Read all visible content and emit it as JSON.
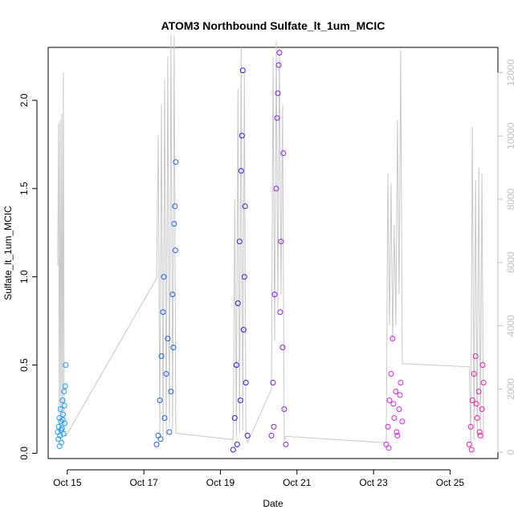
{
  "chart_data": {
    "type": "scatter",
    "title": "ATOM3 Northbound Sulfate_lt_1um_MCIC",
    "xlabel": "Date",
    "ylabel": "Sulfate_lt_1um_MCIC",
    "x_ticks": [
      "Oct 15",
      "Oct 17",
      "Oct 19",
      "Oct 21",
      "Oct 23",
      "Oct 25"
    ],
    "y_ticks": [
      "0.0",
      "0.5",
      "1.0",
      "1.5",
      "2.0"
    ],
    "y2_ticks": [
      "0",
      "2000",
      "4000",
      "6000",
      "8000",
      "10000",
      "12000"
    ],
    "xlim": [
      "2017-10-14 12:00",
      "2017-10-26 06:00"
    ],
    "ylim": [
      -0.03,
      2.3
    ],
    "y2lim": [
      -200,
      12800
    ],
    "axes_style": "open left, bottom and right axes with box frame",
    "grid": false,
    "legend": "none",
    "secondary_series": {
      "type": "line",
      "color": "#c8c8c8",
      "description_axis": "right",
      "points": [
        [
          "2017-10-14 18:00",
          5900
        ],
        [
          "2017-10-14 18:30",
          10400
        ],
        [
          "2017-10-14 19:00",
          300
        ],
        [
          "2017-10-14 19:30",
          10500
        ],
        [
          "2017-10-14 20:00",
          400
        ],
        [
          "2017-10-14 20:30",
          10700
        ],
        [
          "2017-10-14 21:00",
          300
        ],
        [
          "2017-10-14 21:30",
          12000
        ],
        [
          "2017-10-14 22:00",
          600
        ],
        [
          "2017-10-14 23:00",
          500
        ],
        [
          "2017-10-17 08:00",
          5500
        ],
        [
          "2017-10-17 09:00",
          10000
        ],
        [
          "2017-10-17 10:00",
          500
        ],
        [
          "2017-10-17 11:00",
          11000
        ],
        [
          "2017-10-17 12:00",
          400
        ],
        [
          "2017-10-17 13:00",
          11800
        ],
        [
          "2017-10-17 14:00",
          500
        ],
        [
          "2017-10-17 15:00",
          12500
        ],
        [
          "2017-10-17 16:00",
          800
        ],
        [
          "2017-10-17 17:00",
          13200
        ],
        [
          "2017-10-17 18:00",
          700
        ],
        [
          "2017-10-17 19:00",
          13200
        ],
        [
          "2017-10-17 20:00",
          600
        ],
        [
          "2017-10-19 08:00",
          400
        ],
        [
          "2017-10-19 09:00",
          8000
        ],
        [
          "2017-10-19 10:00",
          500
        ],
        [
          "2017-10-19 11:00",
          11500
        ],
        [
          "2017-10-19 12:00",
          600
        ],
        [
          "2017-10-19 13:00",
          12800
        ],
        [
          "2017-10-19 14:00",
          700
        ],
        [
          "2017-10-19 15:00",
          12000
        ],
        [
          "2017-10-19 16:00",
          500
        ],
        [
          "2017-10-19 17:00",
          300
        ],
        [
          "2017-10-20 08:00",
          2000
        ],
        [
          "2017-10-20 09:00",
          12500
        ],
        [
          "2017-10-20 10:00",
          3500
        ],
        [
          "2017-10-20 11:00",
          13000
        ],
        [
          "2017-10-20 12:00",
          4500
        ],
        [
          "2017-10-20 13:00",
          12800
        ],
        [
          "2017-10-20 14:00",
          5000
        ],
        [
          "2017-10-20 15:00",
          11000
        ],
        [
          "2017-10-20 16:00",
          400
        ],
        [
          "2017-10-20 17:00",
          500
        ],
        [
          "2017-10-23 08:00",
          300
        ],
        [
          "2017-10-23 09:00",
          8800
        ],
        [
          "2017-10-23 10:00",
          4000
        ],
        [
          "2017-10-23 11:00",
          8500
        ],
        [
          "2017-10-23 12:00",
          3500
        ],
        [
          "2017-10-23 13:00",
          7200
        ],
        [
          "2017-10-23 14:00",
          4000
        ],
        [
          "2017-10-23 15:00",
          10500
        ],
        [
          "2017-10-23 16:00",
          5000
        ],
        [
          "2017-10-23 17:00",
          12700
        ],
        [
          "2017-10-23 18:00",
          2800
        ],
        [
          "2017-10-25 12:00",
          2700
        ],
        [
          "2017-10-25 13:00",
          300
        ],
        [
          "2017-10-25 14:00",
          10300
        ],
        [
          "2017-10-25 15:00",
          400
        ],
        [
          "2017-10-25 16:00",
          8600
        ],
        [
          "2017-10-25 17:00",
          500
        ],
        [
          "2017-10-25 18:00",
          9000
        ],
        [
          "2017-10-25 19:00",
          600
        ],
        [
          "2017-10-25 20:00",
          8800
        ],
        [
          "2017-10-25 21:00",
          400
        ]
      ]
    },
    "series": [
      {
        "color": "#1aa3ff",
        "marker": "open circle",
        "x_range": [
          "2017-10-14 18:00",
          "2017-10-14 23:00"
        ],
        "typical_y_range": [
          0.04,
          0.38
        ],
        "points": [
          [
            "2017-10-14 18:00",
            0.12
          ],
          [
            "2017-10-14 18:20",
            0.08
          ],
          [
            "2017-10-14 18:40",
            0.15
          ],
          [
            "2017-10-14 19:00",
            0.2
          ],
          [
            "2017-10-14 19:20",
            0.1
          ],
          [
            "2017-10-14 19:40",
            0.25
          ],
          [
            "2017-10-14 20:00",
            0.18
          ],
          [
            "2017-10-14 20:20",
            0.06
          ],
          [
            "2017-10-14 20:40",
            0.14
          ],
          [
            "2017-10-14 21:00",
            0.3
          ],
          [
            "2017-10-14 21:20",
            0.22
          ],
          [
            "2017-10-14 21:40",
            0.11
          ],
          [
            "2017-10-14 22:00",
            0.35
          ],
          [
            "2017-10-14 22:20",
            0.17
          ],
          [
            "2017-10-14 22:40",
            0.38
          ],
          [
            "2017-10-14 23:00",
            0.5
          ],
          [
            "2017-10-14 19:10",
            0.04
          ],
          [
            "2017-10-14 20:10",
            0.13
          ],
          [
            "2017-10-14 21:10",
            0.19
          ],
          [
            "2017-10-14 22:10",
            0.27
          ]
        ]
      },
      {
        "color": "#1a5cff",
        "marker": "open circle",
        "x_range": [
          "2017-10-17 08:00",
          "2017-10-17 20:00"
        ],
        "typical_y_range": [
          0.02,
          0.9
        ],
        "points": [
          [
            "2017-10-17 08:00",
            0.05
          ],
          [
            "2017-10-17 09:00",
            0.1
          ],
          [
            "2017-10-17 10:00",
            0.3
          ],
          [
            "2017-10-17 11:00",
            0.55
          ],
          [
            "2017-10-17 12:00",
            0.8
          ],
          [
            "2017-10-17 12:30",
            1.0
          ],
          [
            "2017-10-17 13:00",
            0.2
          ],
          [
            "2017-10-17 14:00",
            0.45
          ],
          [
            "2017-10-17 15:00",
            0.65
          ],
          [
            "2017-10-17 16:00",
            0.12
          ],
          [
            "2017-10-17 17:00",
            0.35
          ],
          [
            "2017-10-17 18:00",
            0.9
          ],
          [
            "2017-10-17 19:00",
            1.3
          ],
          [
            "2017-10-17 19:30",
            1.4
          ],
          [
            "2017-10-17 20:00",
            1.65
          ],
          [
            "2017-10-17 19:45",
            1.15
          ],
          [
            "2017-10-17 18:30",
            0.6
          ],
          [
            "2017-10-17 10:30",
            0.08
          ]
        ]
      },
      {
        "color": "#2a1aff",
        "marker": "open circle",
        "x_range": [
          "2017-10-19 08:00",
          "2017-10-19 17:00"
        ],
        "typical_y_range": [
          0.0,
          1.8
        ],
        "points": [
          [
            "2017-10-19 08:00",
            0.02
          ],
          [
            "2017-10-19 09:00",
            0.2
          ],
          [
            "2017-10-19 10:00",
            0.5
          ],
          [
            "2017-10-19 11:00",
            0.85
          ],
          [
            "2017-10-19 12:00",
            1.2
          ],
          [
            "2017-10-19 13:00",
            1.6
          ],
          [
            "2017-10-19 13:30",
            1.8
          ],
          [
            "2017-10-19 14:00",
            2.17
          ],
          [
            "2017-10-19 15:00",
            1.0
          ],
          [
            "2017-10-19 16:00",
            0.4
          ],
          [
            "2017-10-19 17:00",
            0.1
          ],
          [
            "2017-10-19 12:30",
            0.3
          ],
          [
            "2017-10-19 10:30",
            0.05
          ],
          [
            "2017-10-19 14:30",
            0.7
          ],
          [
            "2017-10-19 15:30",
            1.4
          ]
        ]
      },
      {
        "color": "#8a1aff",
        "marker": "open circle",
        "x_range": [
          "2017-10-20 08:00",
          "2017-10-20 17:00"
        ],
        "typical_y_range": [
          0.0,
          1.9
        ],
        "points": [
          [
            "2017-10-20 08:00",
            0.1
          ],
          [
            "2017-10-20 09:00",
            0.4
          ],
          [
            "2017-10-20 10:00",
            0.9
          ],
          [
            "2017-10-20 11:00",
            1.5
          ],
          [
            "2017-10-20 11:30",
            1.9
          ],
          [
            "2017-10-20 12:00",
            2.04
          ],
          [
            "2017-10-20 12:30",
            2.2
          ],
          [
            "2017-10-20 13:00",
            2.27
          ],
          [
            "2017-10-20 14:00",
            1.2
          ],
          [
            "2017-10-20 15:00",
            0.6
          ],
          [
            "2017-10-20 16:00",
            0.25
          ],
          [
            "2017-10-20 17:00",
            0.05
          ],
          [
            "2017-10-20 09:30",
            0.15
          ],
          [
            "2017-10-20 13:30",
            0.8
          ],
          [
            "2017-10-20 15:30",
            1.7
          ]
        ]
      },
      {
        "color": "#e21aff",
        "marker": "open circle",
        "x_range": [
          "2017-10-23 08:00",
          "2017-10-23 18:00"
        ],
        "typical_y_range": [
          0.02,
          0.45
        ],
        "points": [
          [
            "2017-10-23 08:00",
            0.05
          ],
          [
            "2017-10-23 09:00",
            0.15
          ],
          [
            "2017-10-23 10:00",
            0.3
          ],
          [
            "2017-10-23 11:00",
            0.45
          ],
          [
            "2017-10-23 12:00",
            0.65
          ],
          [
            "2017-10-23 13:00",
            0.2
          ],
          [
            "2017-10-23 14:00",
            0.35
          ],
          [
            "2017-10-23 15:00",
            0.1
          ],
          [
            "2017-10-23 16:00",
            0.25
          ],
          [
            "2017-10-23 17:00",
            0.4
          ],
          [
            "2017-10-23 18:00",
            0.18
          ],
          [
            "2017-10-23 09:30",
            0.03
          ],
          [
            "2017-10-23 12:30",
            0.28
          ],
          [
            "2017-10-23 14:30",
            0.12
          ],
          [
            "2017-10-23 16:30",
            0.33
          ]
        ]
      },
      {
        "color": "#ff1aaa",
        "marker": "open circle",
        "x_range": [
          "2017-10-25 12:00",
          "2017-10-25 21:00"
        ],
        "typical_y_range": [
          0.0,
          0.4
        ],
        "points": [
          [
            "2017-10-25 12:00",
            0.05
          ],
          [
            "2017-10-25 13:00",
            0.15
          ],
          [
            "2017-10-25 14:00",
            0.3
          ],
          [
            "2017-10-25 15:00",
            0.45
          ],
          [
            "2017-10-25 16:00",
            0.55
          ],
          [
            "2017-10-25 17:00",
            0.2
          ],
          [
            "2017-10-25 18:00",
            0.35
          ],
          [
            "2017-10-25 19:00",
            0.1
          ],
          [
            "2017-10-25 20:00",
            0.25
          ],
          [
            "2017-10-25 21:00",
            0.4
          ],
          [
            "2017-10-25 13:30",
            0.02
          ],
          [
            "2017-10-25 16:30",
            0.28
          ],
          [
            "2017-10-25 18:30",
            0.12
          ],
          [
            "2017-10-25 20:30",
            0.5
          ]
        ]
      }
    ]
  }
}
